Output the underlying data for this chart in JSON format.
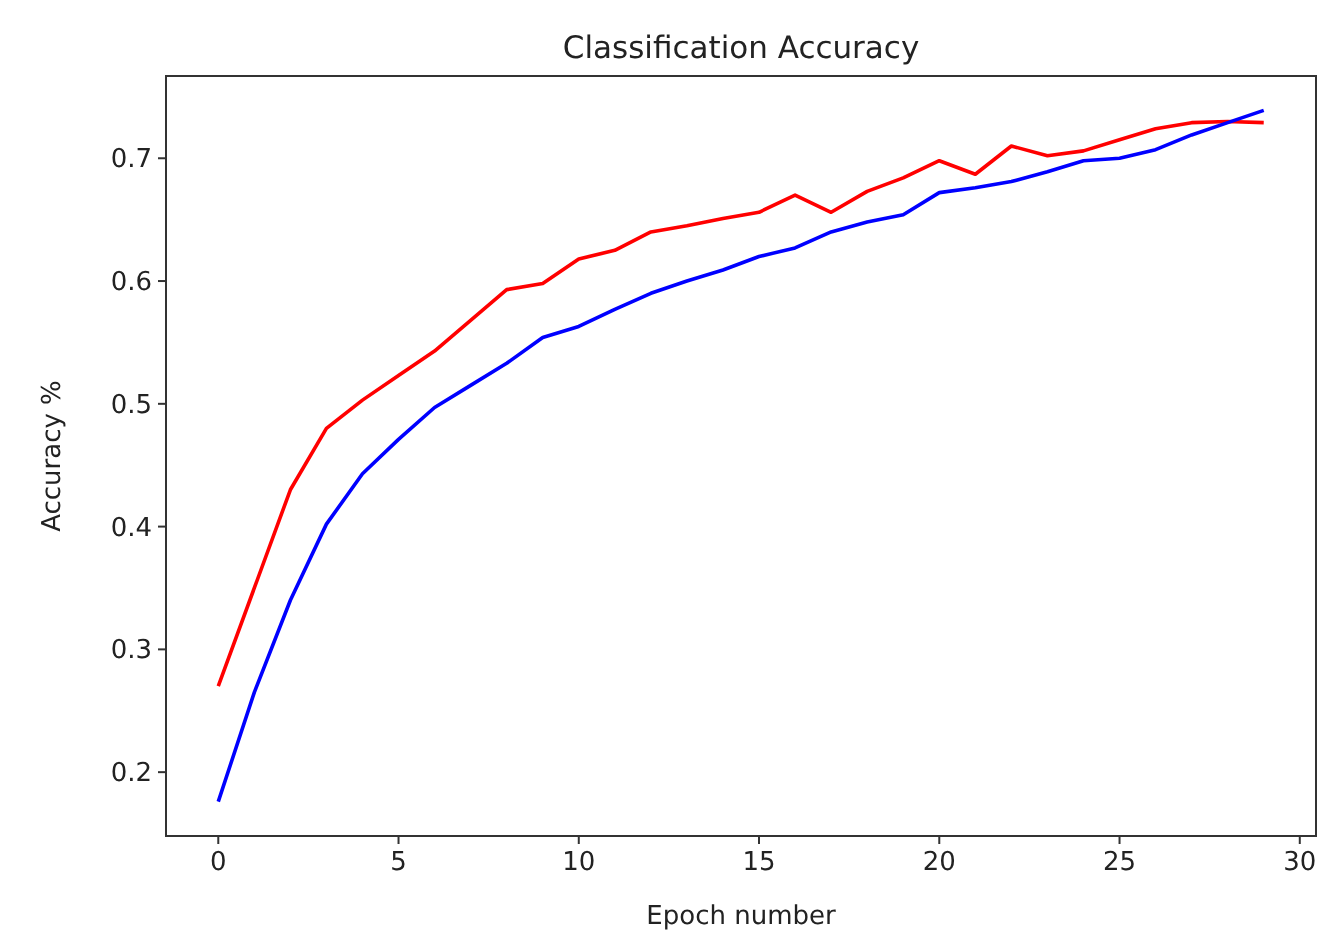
{
  "chart_data": {
    "type": "line",
    "title": "Classification Accuracy",
    "xlabel": "Epoch number",
    "ylabel": "Accuracy %",
    "x": [
      0,
      1,
      2,
      3,
      4,
      5,
      6,
      7,
      8,
      9,
      10,
      11,
      12,
      13,
      14,
      15,
      16,
      17,
      18,
      19,
      20,
      21,
      22,
      23,
      24,
      25,
      26,
      27,
      28,
      29
    ],
    "series": [
      {
        "color": "#ff0000",
        "values": [
          0.27,
          0.35,
          0.43,
          0.48,
          0.503,
          0.523,
          0.543,
          0.568,
          0.593,
          0.598,
          0.618,
          0.625,
          0.64,
          0.645,
          0.651,
          0.656,
          0.67,
          0.656,
          0.673,
          0.684,
          0.698,
          0.687,
          0.71,
          0.702,
          0.706,
          0.715,
          0.724,
          0.729,
          0.73,
          0.729
        ]
      },
      {
        "color": "#0000ff",
        "values": [
          0.176,
          0.265,
          0.34,
          0.402,
          0.443,
          0.471,
          0.497,
          0.515,
          0.533,
          0.554,
          0.563,
          0.577,
          0.59,
          0.6,
          0.609,
          0.62,
          0.627,
          0.64,
          0.648,
          0.654,
          0.672,
          0.676,
          0.681,
          0.689,
          0.698,
          0.7,
          0.707,
          0.719,
          0.729,
          0.739
        ]
      }
    ],
    "xlim": [
      -1.45,
      30.45
    ],
    "xticks": [
      0,
      5,
      10,
      15,
      20,
      25,
      30
    ],
    "ylim": [
      0.148,
      0.767
    ],
    "yticks": [
      0.2,
      0.3,
      0.4,
      0.5,
      0.6,
      0.7
    ]
  }
}
